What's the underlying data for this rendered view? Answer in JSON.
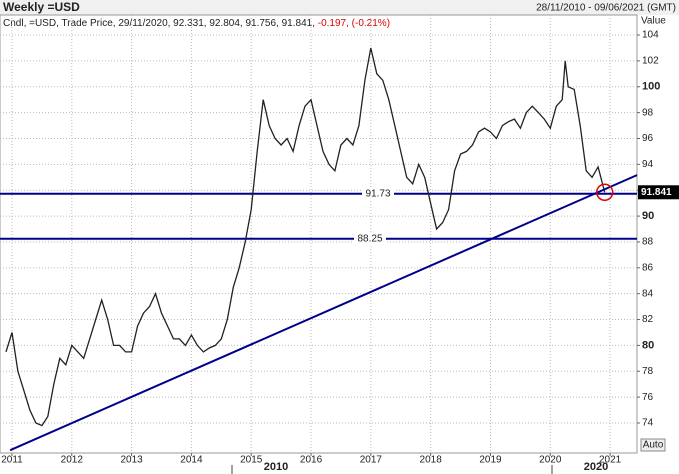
{
  "chart_data": {
    "type": "line",
    "title": "Weekly =USD",
    "date_range": "28/11/2010 - 09/06/2021 (GMT)",
    "info": "Cndl, =USD, Trade Price, 29/11/2020, 92.331, 92.804, 91.756, 91.841,",
    "change": "-0.197, (-0.21%)",
    "y_axis_label": "Value",
    "button": "Auto",
    "period_labels": [
      "2010",
      "2020"
    ],
    "series": [
      {
        "name": "=USD",
        "color": "#222222",
        "x": [
          2010.9,
          2011.0,
          2011.1,
          2011.2,
          2011.3,
          2011.4,
          2011.5,
          2011.6,
          2011.7,
          2011.8,
          2011.9,
          2012.0,
          2012.1,
          2012.2,
          2012.3,
          2012.4,
          2012.5,
          2012.6,
          2012.7,
          2012.8,
          2012.9,
          2013.0,
          2013.1,
          2013.2,
          2013.3,
          2013.4,
          2013.5,
          2013.6,
          2013.7,
          2013.8,
          2013.9,
          2014.0,
          2014.1,
          2014.2,
          2014.3,
          2014.4,
          2014.5,
          2014.6,
          2014.7,
          2014.8,
          2014.9,
          2015.0,
          2015.1,
          2015.2,
          2015.3,
          2015.4,
          2015.5,
          2015.6,
          2015.7,
          2015.8,
          2015.9,
          2016.0,
          2016.1,
          2016.2,
          2016.3,
          2016.4,
          2016.5,
          2016.6,
          2016.7,
          2016.8,
          2016.9,
          2017.0,
          2017.1,
          2017.2,
          2017.3,
          2017.4,
          2017.5,
          2017.6,
          2017.7,
          2017.8,
          2017.9,
          2018.0,
          2018.1,
          2018.2,
          2018.3,
          2018.4,
          2018.5,
          2018.6,
          2018.7,
          2018.8,
          2018.9,
          2019.0,
          2019.1,
          2019.2,
          2019.3,
          2019.4,
          2019.5,
          2019.6,
          2019.7,
          2019.8,
          2019.9,
          2020.0,
          2020.1,
          2020.2,
          2020.25,
          2020.3,
          2020.4,
          2020.5,
          2020.6,
          2020.7,
          2020.8,
          2020.91
        ],
        "values": [
          79.5,
          81,
          78,
          76.5,
          75,
          74,
          73.8,
          74.5,
          77,
          79,
          78.5,
          80,
          79.5,
          79,
          80.5,
          82,
          83.5,
          82,
          80,
          80,
          79.5,
          79.5,
          81.5,
          82.5,
          83,
          84,
          82.5,
          81.5,
          80.5,
          80.5,
          80,
          80.8,
          80,
          79.5,
          79.8,
          80,
          80.5,
          82,
          84.5,
          86,
          88,
          90.5,
          95,
          99,
          97,
          96,
          95.5,
          96,
          95,
          97,
          98.5,
          99,
          97,
          95,
          94,
          93.5,
          95.5,
          96,
          95.5,
          97,
          100.5,
          103,
          101,
          100.5,
          99,
          97,
          95,
          93,
          92.5,
          94,
          93,
          91,
          89,
          89.5,
          90.5,
          93.5,
          94.8,
          95,
          95.5,
          96.5,
          96.8,
          96.5,
          96,
          97,
          97.3,
          97.5,
          96.8,
          98,
          98.5,
          98,
          97.5,
          96.8,
          98.5,
          99,
          102,
          100,
          99.8,
          97,
          93.5,
          93,
          93.8,
          91.841
        ]
      }
    ],
    "horizontal_lines": [
      91.73,
      88.25
    ],
    "trendline": {
      "x": [
        2010.97,
        2021.45
      ],
      "values": [
        71.9,
        93.17
      ]
    },
    "last_price": 91.841,
    "xlim": [
      2010.8,
      2021.45
    ],
    "ylim": [
      71.68,
      105.55
    ],
    "xticks": [
      2011,
      2012,
      2013,
      2014,
      2015,
      2016,
      2017,
      2018,
      2019,
      2020,
      2021
    ],
    "yticks": [
      74,
      76,
      78,
      80,
      82,
      84,
      86,
      88,
      90,
      92,
      94,
      96,
      98,
      100,
      102,
      104
    ],
    "grid": true
  }
}
